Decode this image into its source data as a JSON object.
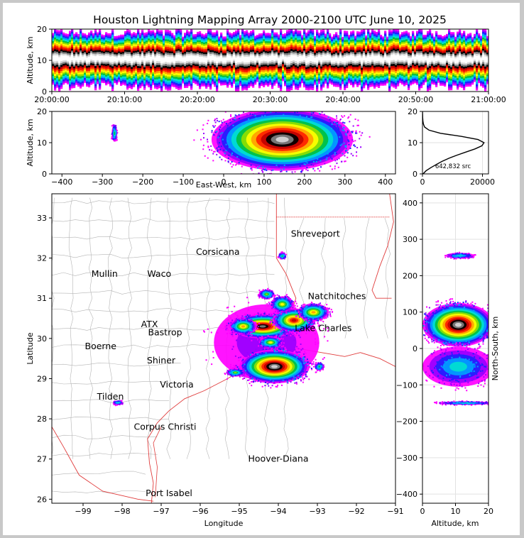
{
  "title": "Houston Lightning Mapping Array 2000-2100 UTC June 10, 2025",
  "colors": {
    "background": "#ffffff",
    "frame": "#c8c8c8",
    "county_lines": "#b4b4b4",
    "coast_and_borders": "#e03c3c",
    "density_scale": [
      "#ff00ff",
      "#9900ff",
      "#2020ff",
      "#00a0ff",
      "#00e0d0",
      "#00c040",
      "#90e000",
      "#ffff00",
      "#ffa000",
      "#ff2000",
      "#c00000",
      "#000000",
      "#808080",
      "#d8d8d8",
      "#ffffff"
    ]
  },
  "chart_data": [
    {
      "name": "altitude-time",
      "type": "heatmap",
      "xlabel": "",
      "ylabel": "Altitude, km",
      "x_ticks": [
        "20:00:00",
        "20:10:00",
        "20:20:00",
        "20:30:00",
        "20:40:00",
        "20:50:00",
        "21:00:00"
      ],
      "xlim": [
        "20:00:00",
        "21:00:00"
      ],
      "y_ticks": [
        0,
        10,
        20
      ],
      "ylim": [
        0,
        20
      ],
      "band_altitude_km": [
        1,
        19
      ],
      "core_altitude_km": [
        7.5,
        13.5
      ]
    },
    {
      "name": "altitude-east-west",
      "type": "heatmap",
      "xlabel": "East-West, km",
      "ylabel": "Altitude, km",
      "x_ticks": [
        -400,
        -300,
        -200,
        -100,
        0,
        100,
        200,
        300,
        400
      ],
      "xlim": [
        -425,
        425
      ],
      "y_ticks": [
        0,
        10,
        20
      ],
      "ylim": [
        0,
        20
      ],
      "main_cell_km": [
        -30,
        320
      ],
      "isolated_cell_km": -270
    },
    {
      "name": "altitude-histogram",
      "type": "line",
      "xlabel": "",
      "ylabel": "",
      "x_ticks": [
        0,
        20000
      ],
      "xlim": [
        0,
        22000
      ],
      "y_ticks": [
        0,
        10,
        20
      ],
      "ylim": [
        0,
        20
      ],
      "annotation": "642,832 src",
      "series": [
        {
          "altitude": [
            0,
            1,
            2,
            3,
            4,
            5,
            6,
            7,
            8,
            9,
            10,
            11,
            12,
            13,
            14,
            15,
            16,
            17,
            18,
            19,
            20
          ],
          "sources": [
            200,
            1200,
            2800,
            4600,
            6500,
            8800,
            11500,
            14500,
            17500,
            19800,
            20500,
            18500,
            13000,
            6000,
            2200,
            700,
            300,
            150,
            80,
            40,
            10
          ]
        }
      ]
    },
    {
      "name": "plan-view",
      "type": "heatmap",
      "xlabel": "Longitude",
      "ylabel": "Latitude",
      "x_ticks": [
        -99,
        -98,
        -97,
        -96,
        -95,
        -94,
        -93,
        -92,
        -91
      ],
      "xlim": [
        -99.8,
        -91
      ],
      "y_ticks": [
        26,
        27,
        28,
        29,
        30,
        31,
        32,
        33
      ],
      "ylim": [
        25.9,
        33.6
      ],
      "cities": [
        {
          "name": "Shreveport",
          "lon": -93.05,
          "lat": 32.6,
          "color": "#000000"
        },
        {
          "name": "Corsicana",
          "lon": -95.55,
          "lat": 32.15,
          "color": "#000000"
        },
        {
          "name": "Mullin",
          "lon": -98.45,
          "lat": 31.6,
          "color": "#ff8c3c"
        },
        {
          "name": "Waco",
          "lon": -97.05,
          "lat": 31.6,
          "color": "#000000"
        },
        {
          "name": "Natchitoches",
          "lon": -92.5,
          "lat": 31.05,
          "color": "#000000"
        },
        {
          "name": "ATX",
          "lon": -97.3,
          "lat": 30.35,
          "color": "#ff8c3c"
        },
        {
          "name": "Bastrop",
          "lon": -96.9,
          "lat": 30.15,
          "color": "#000000"
        },
        {
          "name": "Lake Charles",
          "lon": -92.85,
          "lat": 30.25,
          "color": "#000000"
        },
        {
          "name": "Boerne",
          "lon": -98.55,
          "lat": 29.8,
          "color": "#000000"
        },
        {
          "name": "Shiner",
          "lon": -97.0,
          "lat": 29.45,
          "color": "#000000"
        },
        {
          "name": "Victoria",
          "lon": -96.6,
          "lat": 28.85,
          "color": "#000000"
        },
        {
          "name": "Tilden",
          "lon": -98.3,
          "lat": 28.55,
          "color": "#000000"
        },
        {
          "name": "Corpus Christi",
          "lon": -96.9,
          "lat": 27.8,
          "color": "#000000"
        },
        {
          "name": "Hoover-Diana",
          "lon": -94.0,
          "lat": 27.0,
          "color": "#2020dc"
        },
        {
          "name": "Port Isabel",
          "lon": -96.8,
          "lat": 26.15,
          "color": "#000000"
        }
      ],
      "storm_cells": [
        {
          "lon": -94.1,
          "lat": 29.3,
          "rx": 0.9,
          "ry": 0.42
        },
        {
          "lon": -94.4,
          "lat": 30.3,
          "rx": 0.85,
          "ry": 0.3
        },
        {
          "lon": -93.6,
          "lat": 30.45,
          "rx": 0.55,
          "ry": 0.3
        },
        {
          "lon": -93.1,
          "lat": 30.65,
          "rx": 0.4,
          "ry": 0.22
        },
        {
          "lon": -94.9,
          "lat": 30.3,
          "rx": 0.35,
          "ry": 0.2
        },
        {
          "lon": -93.9,
          "lat": 30.85,
          "rx": 0.3,
          "ry": 0.2
        },
        {
          "lon": -94.2,
          "lat": 29.9,
          "rx": 0.3,
          "ry": 0.15
        },
        {
          "lon": -95.1,
          "lat": 29.15,
          "rx": 0.22,
          "ry": 0.1
        },
        {
          "lon": -92.95,
          "lat": 29.3,
          "rx": 0.12,
          "ry": 0.1
        },
        {
          "lon": -94.3,
          "lat": 31.1,
          "rx": 0.2,
          "ry": 0.12
        },
        {
          "lon": -98.1,
          "lat": 28.4,
          "rx": 0.12,
          "ry": 0.06
        },
        {
          "lon": -93.9,
          "lat": 32.05,
          "rx": 0.1,
          "ry": 0.08
        }
      ]
    },
    {
      "name": "north-south-altitude",
      "type": "heatmap",
      "xlabel": "Altitude, km",
      "ylabel": "North-South, km",
      "x_ticks": [
        0,
        10,
        20
      ],
      "xlim": [
        0,
        20
      ],
      "y_ticks": [
        -400,
        -300,
        -200,
        -100,
        0,
        100,
        200,
        300,
        400
      ],
      "ylim": [
        -425,
        425
      ],
      "cells": [
        {
          "ns_km": 65,
          "alt_lo": 0,
          "alt_hi": 20,
          "half_height_km": 60
        },
        {
          "ns_km": -50,
          "alt_lo": 0,
          "alt_hi": 20,
          "half_height_km": 55
        },
        {
          "ns_km": 255,
          "alt_lo": 7,
          "alt_hi": 14,
          "half_height_km": 8
        },
        {
          "ns_km": -150,
          "alt_lo": 5,
          "alt_hi": 20,
          "half_height_km": 5
        }
      ]
    }
  ]
}
